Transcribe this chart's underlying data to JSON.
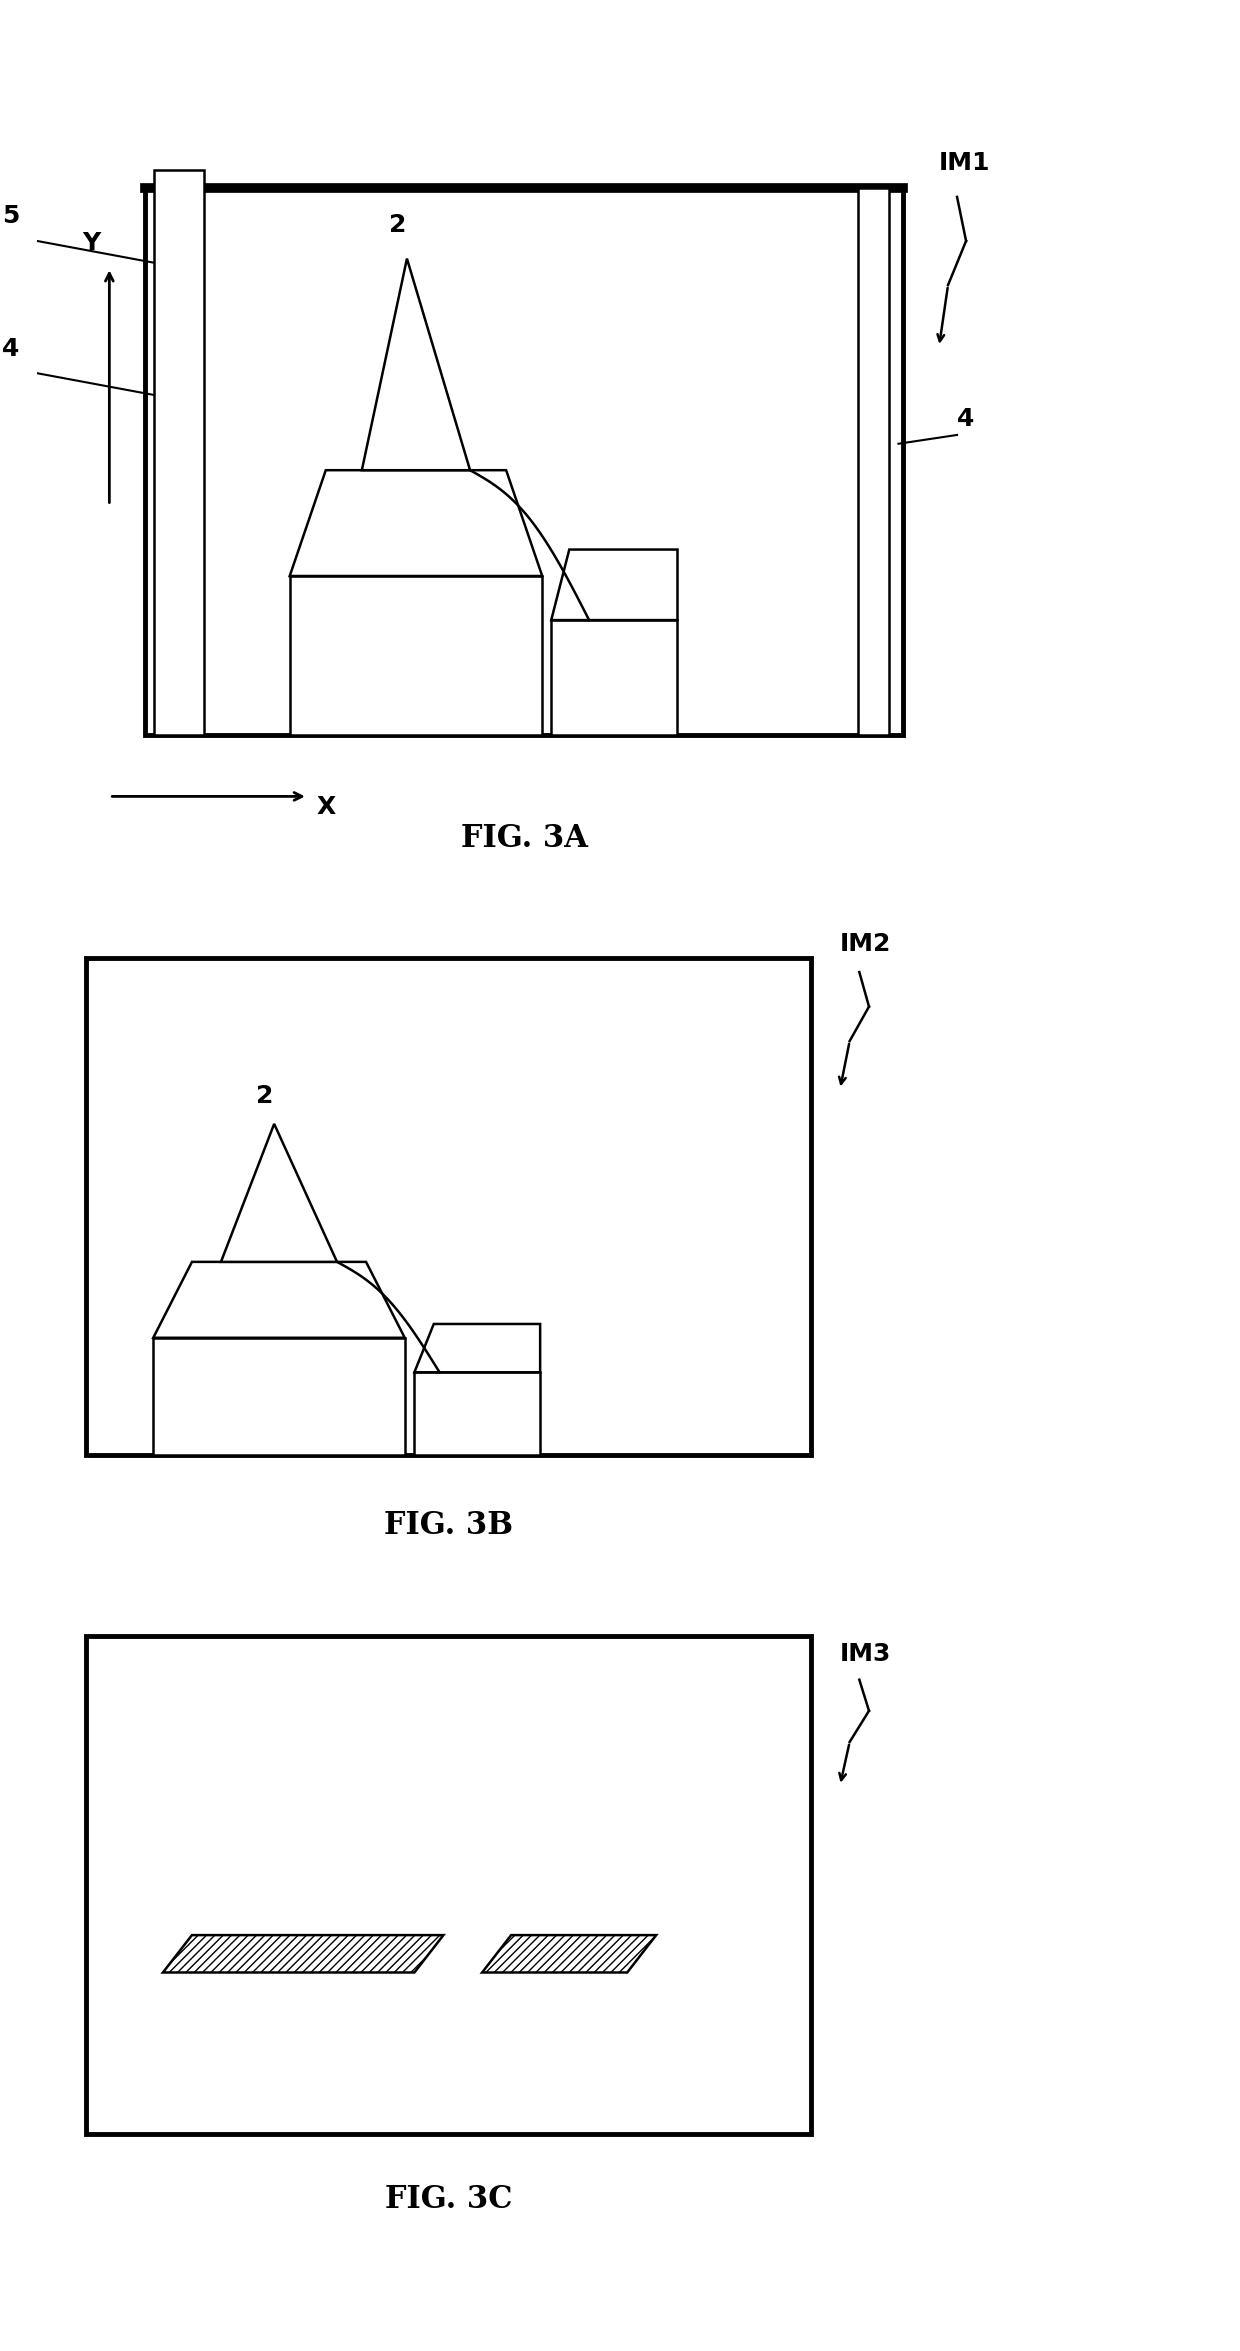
{
  "fig_width": 12.4,
  "fig_height": 23.51,
  "bg_color": "#ffffff",
  "lw": 1.8,
  "lw_thick": 3.5,
  "font_label": 18,
  "font_caption": 22,
  "fig3a": {
    "title": "FIG. 3A",
    "label_IM": "IM1",
    "label_2": "2",
    "label_4_left": "4",
    "label_5": "5",
    "label_4_right": "4"
  },
  "fig3b": {
    "title": "FIG. 3B",
    "label_IM": "IM2",
    "label_2": "2"
  },
  "fig3c": {
    "title": "FIG. 3C",
    "label_IM": "IM3"
  }
}
